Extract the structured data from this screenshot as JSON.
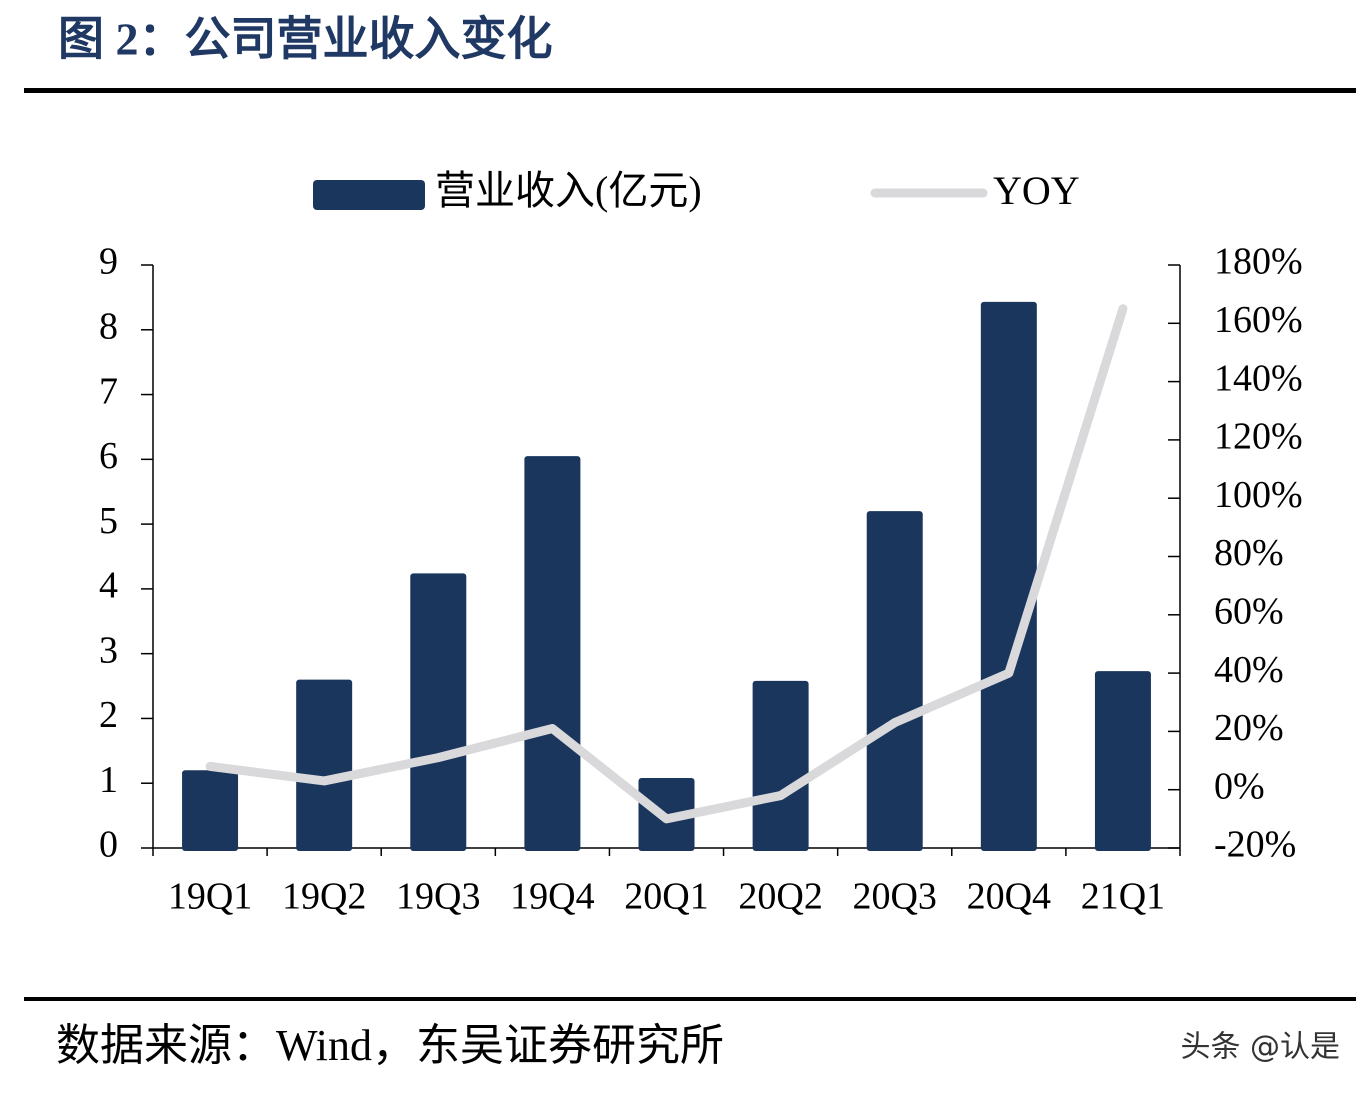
{
  "chart_data": {
    "type": "bar",
    "title": "图 2：公司营业收入变化",
    "categories": [
      "19Q1",
      "19Q2",
      "19Q3",
      "19Q4",
      "20Q1",
      "20Q2",
      "20Q3",
      "20Q4",
      "21Q1"
    ],
    "series": [
      {
        "name": "营业收入(亿元)",
        "type": "bar",
        "color": "#1b365d",
        "values": [
          1.2,
          2.6,
          4.24,
          6.05,
          1.08,
          2.58,
          5.2,
          8.43,
          2.73
        ]
      },
      {
        "name": "YOY",
        "type": "line",
        "axis": "y2",
        "color": "#d9d9dc",
        "values": [
          8,
          3,
          11,
          21,
          -10,
          -2,
          23,
          40,
          165
        ]
      }
    ],
    "ylim": [
      0,
      9
    ],
    "yticks": [
      0,
      1,
      2,
      3,
      4,
      5,
      6,
      7,
      8,
      9
    ],
    "y2lim": [
      -20,
      180
    ],
    "y2ticks": [
      {
        "value": -20,
        "label": "-20%"
      },
      {
        "value": 0,
        "label": "0%"
      },
      {
        "value": 20,
        "label": "20%"
      },
      {
        "value": 40,
        "label": "40%"
      },
      {
        "value": 60,
        "label": "60%"
      },
      {
        "value": 80,
        "label": "80%"
      },
      {
        "value": 100,
        "label": "100%"
      },
      {
        "value": 120,
        "label": "120%"
      },
      {
        "value": 140,
        "label": "140%"
      },
      {
        "value": 160,
        "label": "160%"
      },
      {
        "value": 180,
        "label": "180%"
      }
    ],
    "legend": "top",
    "source": "数据来源：Wind，东吴证券研究所",
    "watermark": "头条 @认是"
  }
}
